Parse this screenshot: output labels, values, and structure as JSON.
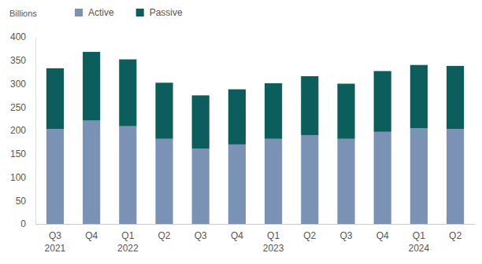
{
  "chart_data": {
    "type": "bar",
    "stacked": true,
    "legend": "top-left",
    "y_label": "Billions",
    "categories": [
      "Q3 2021",
      "Q4",
      "Q1 2022",
      "Q2",
      "Q3",
      "Q4",
      "Q1 2023",
      "Q2",
      "Q3",
      "Q4",
      "Q1 2024",
      "Q2"
    ],
    "series": [
      {
        "name": "Active",
        "color": "#7a92b4",
        "values": [
          203,
          221,
          209,
          182,
          161,
          170,
          182,
          190,
          182,
          197,
          205,
          203
        ]
      },
      {
        "name": "Passive",
        "color": "#0b5e5b",
        "values": [
          130,
          147,
          143,
          120,
          114,
          118,
          119,
          126,
          118,
          130,
          135,
          135
        ]
      }
    ],
    "ylim": [
      0,
      400
    ],
    "yticks": [
      0,
      50,
      100,
      150,
      200,
      250,
      300,
      350,
      400
    ]
  }
}
